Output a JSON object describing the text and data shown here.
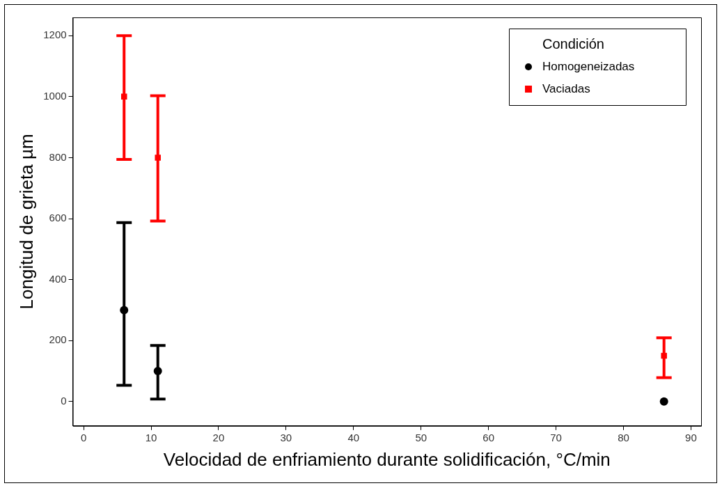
{
  "chart_data": {
    "type": "scatter",
    "xlabel": "Velocidad de enfriamiento durante solidificación, °C/min",
    "ylabel": "Longitud de grieta µm",
    "legend_title": "Condición",
    "legend": "top right",
    "grid": false,
    "xlim": [
      -1.6,
      91.5
    ],
    "xticks": [
      0,
      10,
      20,
      30,
      40,
      50,
      60,
      70,
      80,
      90
    ],
    "ylim": [
      -80,
      1260
    ],
    "yticks": [
      0,
      200,
      400,
      600,
      800,
      1000,
      1200
    ],
    "series": [
      {
        "name": "Homogeneizadas",
        "color": "#000000",
        "marker": "circle",
        "x": [
          6,
          11,
          86
        ],
        "values": [
          300,
          100,
          0
        ],
        "errors": [
          [
            53,
            587
          ],
          [
            8,
            184
          ],
          null
        ]
      },
      {
        "name": "Vaciadas",
        "color": "#ff0000",
        "marker": "square",
        "x": [
          6,
          11,
          86
        ],
        "values": [
          1000,
          800,
          150
        ],
        "errors": [
          [
            794,
            1200
          ],
          [
            592,
            1003
          ],
          [
            78,
            209
          ]
        ]
      }
    ]
  }
}
